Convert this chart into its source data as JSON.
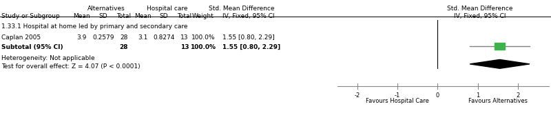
{
  "title_alternatives": "Alternatives",
  "title_hospital": "Hospital care",
  "title_smd": "Std. Mean Difference",
  "title_smd2": "Std. Mean Difference",
  "section_label": "1.33.1 Hospital at home led by primary and secondary care",
  "studies": [
    {
      "name": "Caplan 2005",
      "alt_mean": "3.9",
      "alt_sd": "0.2579",
      "alt_total": "28",
      "hosp_mean": "3.1",
      "hosp_sd": "0.8274",
      "hosp_total": "13",
      "weight": "100.0%",
      "ci_text": "1.55 [0.80, 2.29]",
      "estimate": 1.55,
      "ci_low": 0.8,
      "ci_high": 2.29
    }
  ],
  "subtotal": {
    "name": "Subtotal (95% CI)",
    "alt_total": "28",
    "hosp_total": "13",
    "weight": "100.0%",
    "ci_text": "1.55 [0.80, 2.29]",
    "estimate": 1.55,
    "ci_low": 0.8,
    "ci_high": 2.29
  },
  "heterogeneity_text": "Heterogeneity: Not applicable",
  "overall_effect_text": "Test for overall effect: Z = 4.07 (P < 0.0001)",
  "axis_min": -2.5,
  "axis_max": 2.8,
  "axis_ticks": [
    -2,
    -1,
    0,
    1,
    2
  ],
  "favours_left": "Favours Hospital Care",
  "favours_right": "Favours Alternatives",
  "square_color": "#3cb34a",
  "diamond_color": "#000000",
  "ci_line_color": "#808080",
  "axis_line_color": "#888888"
}
